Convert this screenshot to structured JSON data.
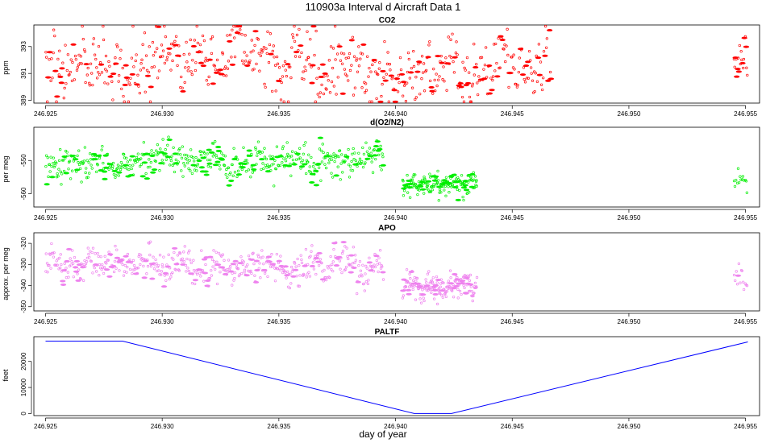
{
  "title": "110903a   Interval d Aircraft Data 1",
  "xlabel": "day of year",
  "chart_data": [
    {
      "type": "scatter",
      "title": "CO2",
      "ylabel": "ppm",
      "color": "#ff0000",
      "xlim": [
        246.9245,
        246.9556
      ],
      "ylim": [
        388.8,
        394.6
      ],
      "x_ticks": [
        "246.925",
        "246.930",
        "246.935",
        "246.940",
        "246.945",
        "246.950",
        "246.955"
      ],
      "y_ticks": [
        "389",
        "391",
        "393"
      ],
      "series": [
        {
          "segments": [
            {
              "x0": 246.925,
              "x1": 246.9467,
              "mean": 391.6,
              "spread": 1.5,
              "n": 620
            },
            {
              "x0": 246.9545,
              "x1": 246.9551,
              "mean": 391.9,
              "spread": 1.2,
              "n": 20
            }
          ]
        }
      ]
    },
    {
      "type": "scatter",
      "title": "d(O2/N2)",
      "ylabel": "per meg",
      "color": "#00ee00",
      "xlim": [
        246.9245,
        246.9556
      ],
      "ylim": [
        -564,
        -540
      ],
      "x_ticks": [
        "246.925",
        "246.930",
        "246.935",
        "246.940",
        "246.945",
        "246.950",
        "246.955"
      ],
      "y_ticks": [
        "-550",
        "-560"
      ],
      "series": [
        {
          "segments": [
            {
              "x0": 246.925,
              "x1": 246.9395,
              "mean": -550,
              "spread": 3.2,
              "n": 520
            },
            {
              "x0": 246.9403,
              "x1": 246.9435,
              "mean": -558,
              "spread": 2.2,
              "n": 180
            },
            {
              "x0": 246.9545,
              "x1": 246.9551,
              "mean": -556,
              "spread": 2.0,
              "n": 14
            }
          ]
        }
      ]
    },
    {
      "type": "scatter",
      "title": "APO",
      "ylabel": "approx. per meg",
      "color": "#ee82ee",
      "xlim": [
        246.9245,
        246.9556
      ],
      "ylim": [
        -352,
        -315
      ],
      "x_ticks": [
        "246.925",
        "246.930",
        "246.935",
        "246.940",
        "246.945",
        "246.950",
        "246.955"
      ],
      "y_ticks": [
        "-320",
        "-330",
        "-340",
        "-350"
      ],
      "series": [
        {
          "segments": [
            {
              "x0": 246.925,
              "x1": 246.9395,
              "mean": -331,
              "spread": 5.0,
              "n": 520
            },
            {
              "x0": 246.9403,
              "x1": 246.9435,
              "mean": -340,
              "spread": 4.0,
              "n": 180
            },
            {
              "x0": 246.9545,
              "x1": 246.9551,
              "mean": -336,
              "spread": 4.0,
              "n": 14
            }
          ]
        }
      ]
    },
    {
      "type": "line",
      "title": "PALTF",
      "ylabel": "feet",
      "color": "#0000ff",
      "xlim": [
        246.9245,
        246.9556
      ],
      "ylim": [
        -800,
        29500
      ],
      "x_ticks": [
        "246.925",
        "246.930",
        "246.935",
        "246.940",
        "246.945",
        "246.950",
        "246.955"
      ],
      "y_ticks": [
        "0",
        "10000",
        "20000"
      ],
      "x": [
        246.925,
        246.9283,
        246.9408,
        246.9424,
        246.9551
      ],
      "y": [
        27800,
        27800,
        0,
        0,
        27500
      ]
    }
  ]
}
